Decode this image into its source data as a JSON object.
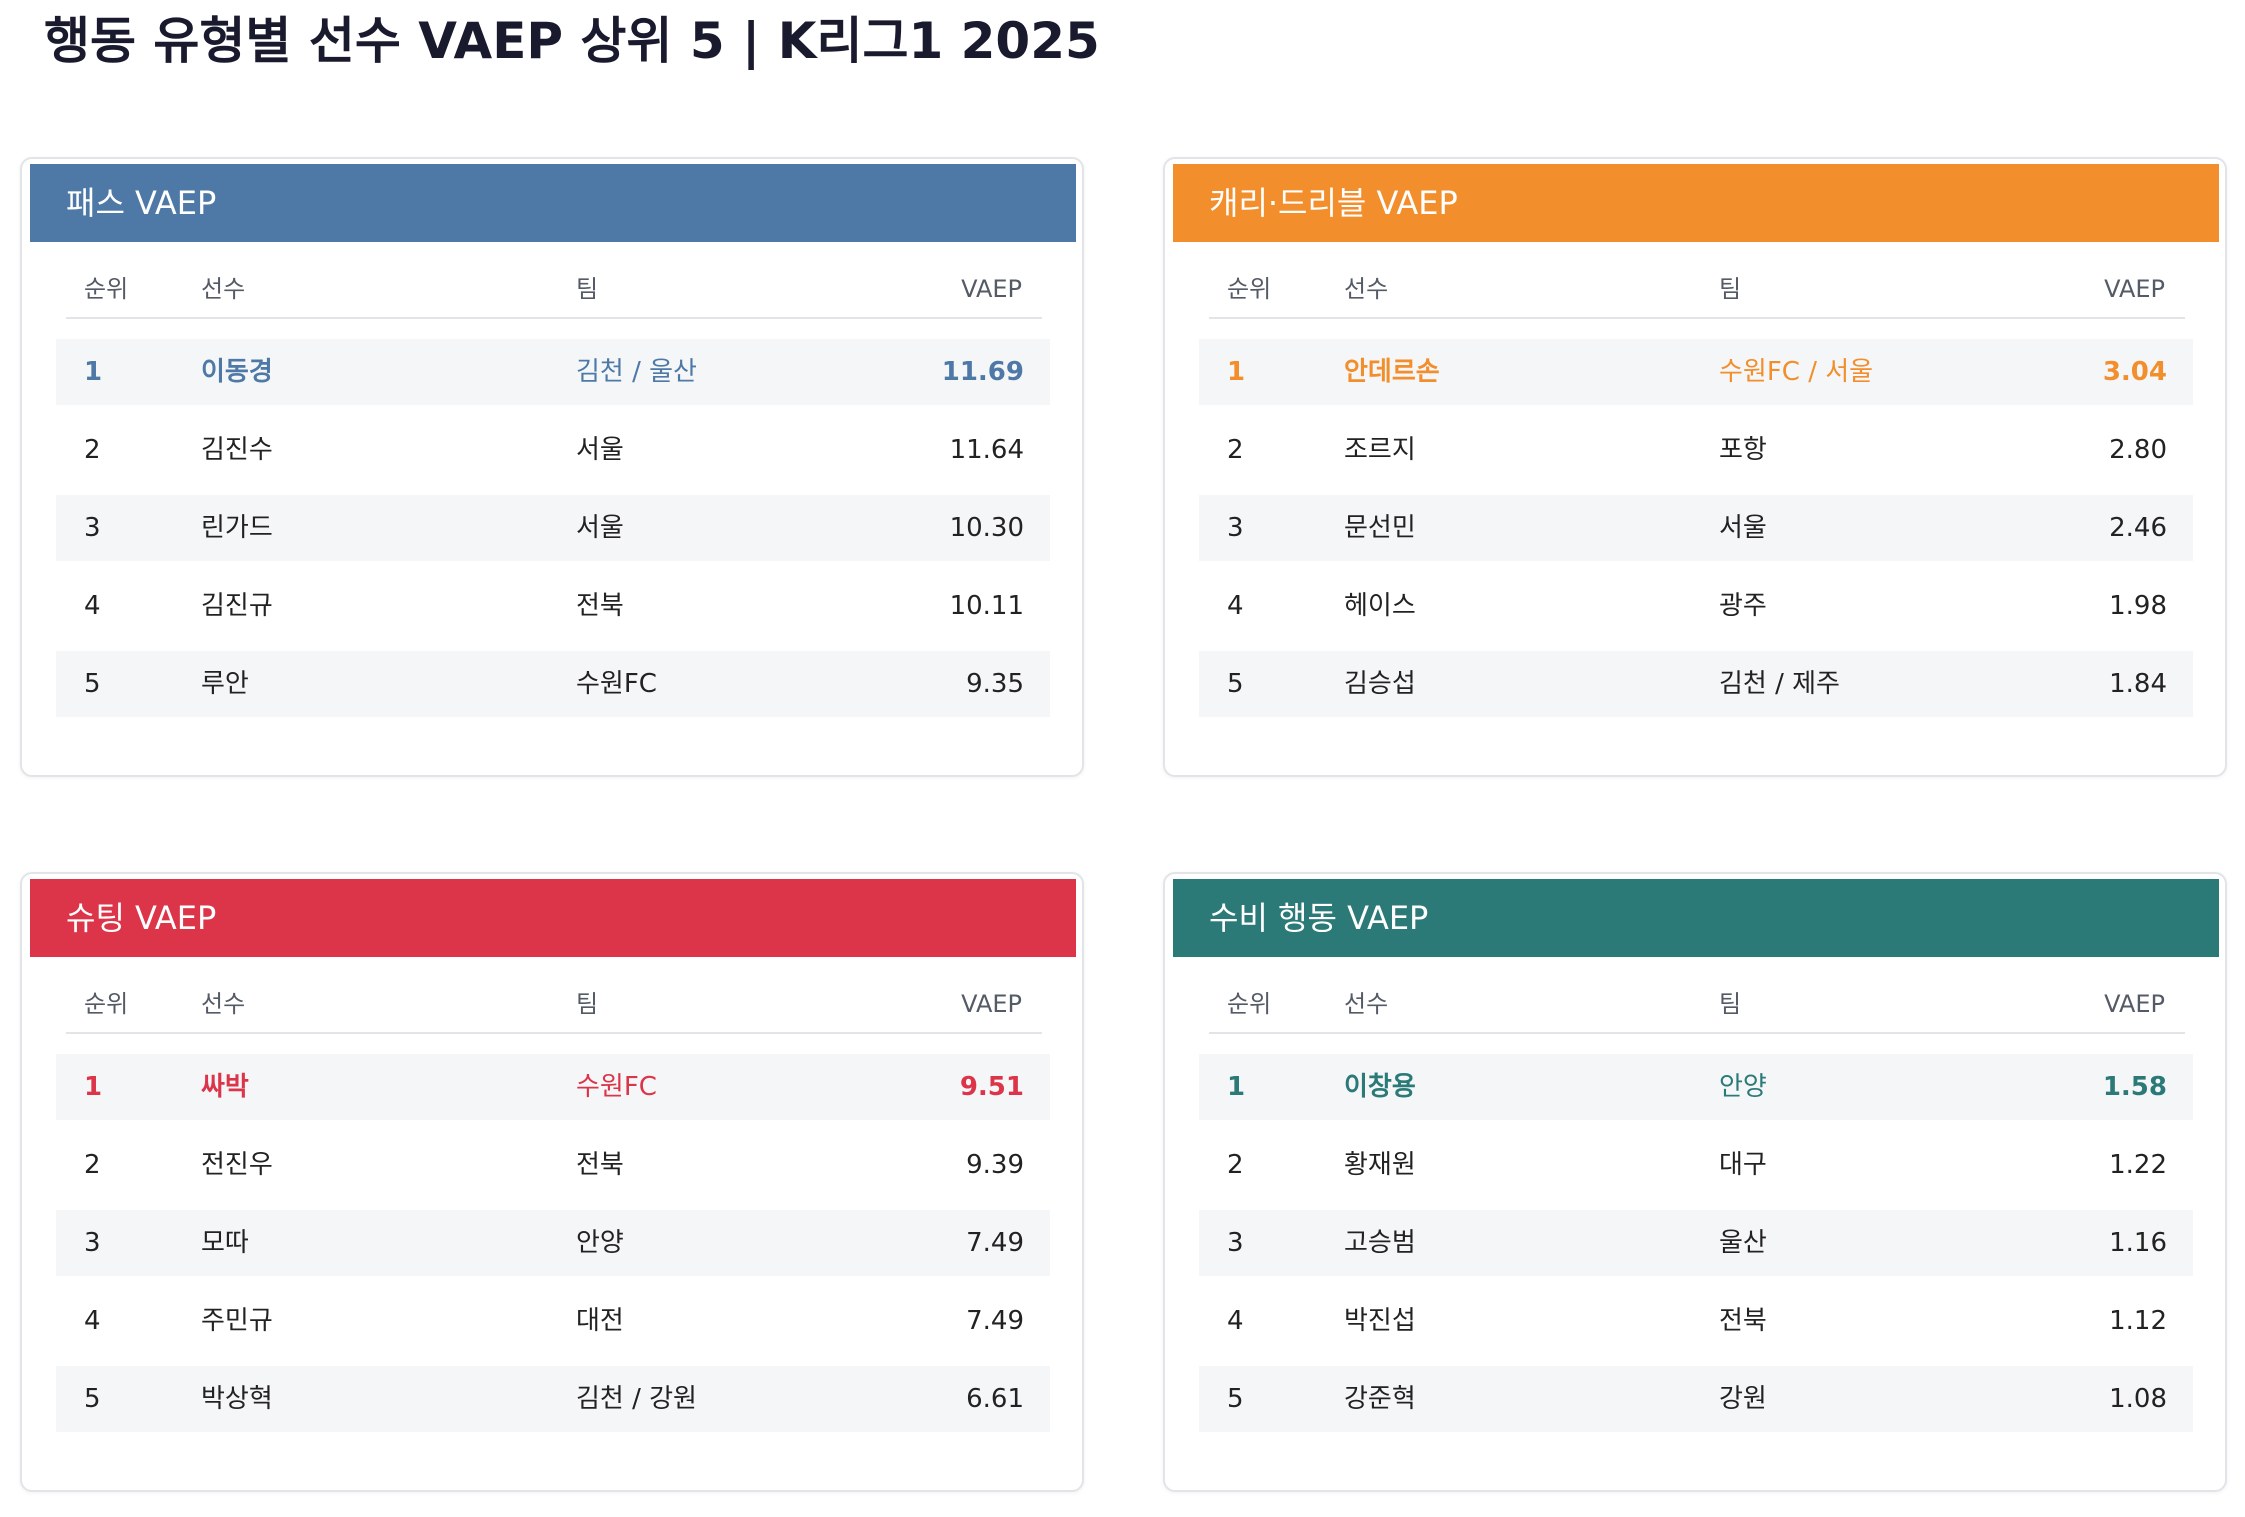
{
  "title": "행동 유형별 선수 VAEP 상위 5 | K리그1 2025",
  "columns": {
    "rank": "순위",
    "player": "선수",
    "team": "팀",
    "vaep": "VAEP"
  },
  "chart_data": [
    {
      "type": "table",
      "title": "패스 VAEP",
      "accent": "#4e79a7",
      "columns": [
        "순위",
        "선수",
        "팀",
        "VAEP"
      ],
      "rows": [
        {
          "rank": "1",
          "player": "이동경",
          "team": "김천 / 울산",
          "vaep": "11.69"
        },
        {
          "rank": "2",
          "player": "김진수",
          "team": "서울",
          "vaep": "11.64"
        },
        {
          "rank": "3",
          "player": "린가드",
          "team": "서울",
          "vaep": "10.30"
        },
        {
          "rank": "4",
          "player": "김진규",
          "team": "전북",
          "vaep": "10.11"
        },
        {
          "rank": "5",
          "player": "루안",
          "team": "수원FC",
          "vaep": "9.35"
        }
      ]
    },
    {
      "type": "table",
      "title": "캐리·드리블 VAEP",
      "accent": "#f28e2b",
      "columns": [
        "순위",
        "선수",
        "팀",
        "VAEP"
      ],
      "rows": [
        {
          "rank": "1",
          "player": "안데르손",
          "team": "수원FC / 서울",
          "vaep": "3.04"
        },
        {
          "rank": "2",
          "player": "조르지",
          "team": "포항",
          "vaep": "2.80"
        },
        {
          "rank": "3",
          "player": "문선민",
          "team": "서울",
          "vaep": "2.46"
        },
        {
          "rank": "4",
          "player": "헤이스",
          "team": "광주",
          "vaep": "1.98"
        },
        {
          "rank": "5",
          "player": "김승섭",
          "team": "김천 / 제주",
          "vaep": "1.84"
        }
      ]
    },
    {
      "type": "table",
      "title": "슈팅 VAEP",
      "accent": "#dc354a",
      "columns": [
        "순위",
        "선수",
        "팀",
        "VAEP"
      ],
      "rows": [
        {
          "rank": "1",
          "player": "싸박",
          "team": "수원FC",
          "vaep": "9.51"
        },
        {
          "rank": "2",
          "player": "전진우",
          "team": "전북",
          "vaep": "9.39"
        },
        {
          "rank": "3",
          "player": "모따",
          "team": "안양",
          "vaep": "7.49"
        },
        {
          "rank": "4",
          "player": "주민규",
          "team": "대전",
          "vaep": "7.49"
        },
        {
          "rank": "5",
          "player": "박상혁",
          "team": "김천 / 강원",
          "vaep": "6.61"
        }
      ]
    },
    {
      "type": "table",
      "title": "수비 행동 VAEP",
      "accent": "#2b7a78",
      "columns": [
        "순위",
        "선수",
        "팀",
        "VAEP"
      ],
      "rows": [
        {
          "rank": "1",
          "player": "이창용",
          "team": "안양",
          "vaep": "1.58"
        },
        {
          "rank": "2",
          "player": "황재원",
          "team": "대구",
          "vaep": "1.22"
        },
        {
          "rank": "3",
          "player": "고승범",
          "team": "울산",
          "vaep": "1.16"
        },
        {
          "rank": "4",
          "player": "박진섭",
          "team": "전북",
          "vaep": "1.12"
        },
        {
          "rank": "5",
          "player": "강준혁",
          "team": "강원",
          "vaep": "1.08"
        }
      ]
    }
  ]
}
